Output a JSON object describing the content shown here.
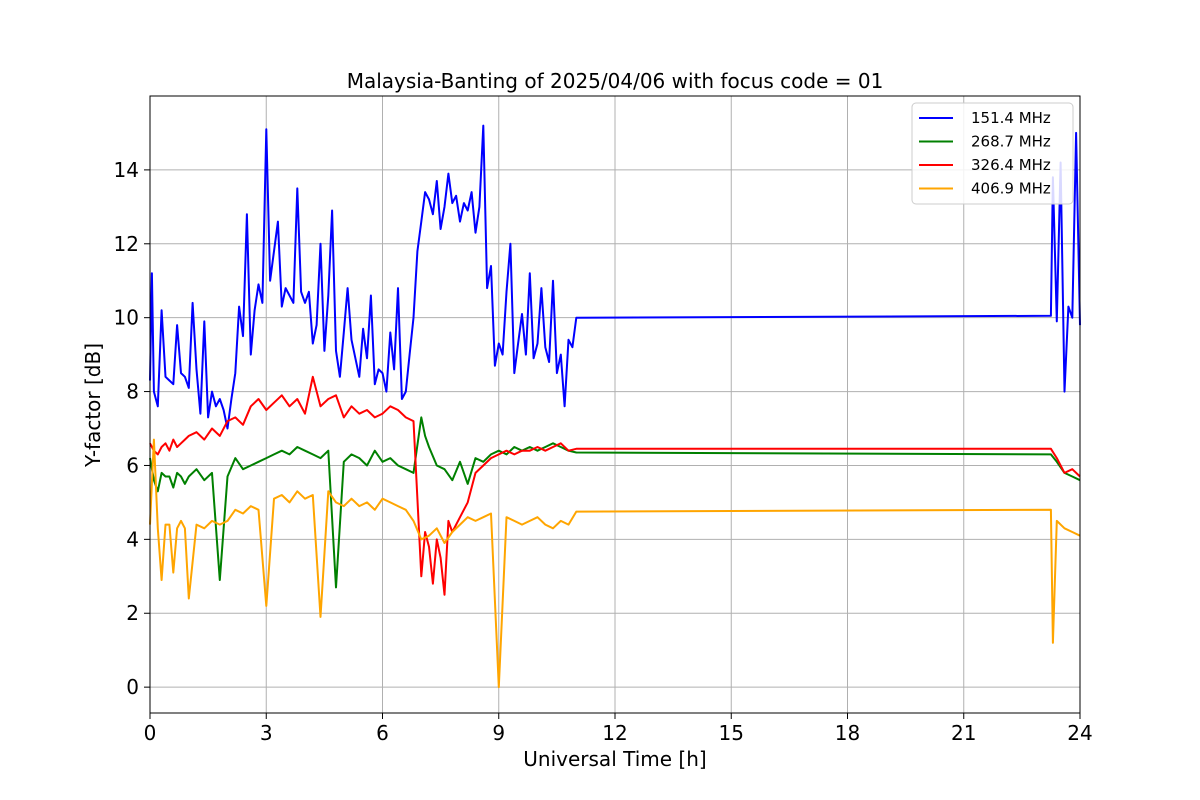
{
  "chart_data": {
    "type": "line",
    "title": "Malaysia-Banting of 2025/04/06 with focus code = 01",
    "xlabel": "Universal Time [h]",
    "ylabel": "Y-factor [dB]",
    "xlim": [
      0,
      24
    ],
    "ylim": [
      -0.7,
      16
    ],
    "xticks": [
      0,
      3,
      6,
      9,
      12,
      15,
      18,
      21,
      24
    ],
    "yticks": [
      0,
      2,
      4,
      6,
      8,
      10,
      12,
      14
    ],
    "grid": true,
    "legend_position": "top-right",
    "series": [
      {
        "name": "151.4 MHz",
        "color": "#0000ff",
        "x": [
          0.0,
          0.05,
          0.1,
          0.2,
          0.3,
          0.4,
          0.5,
          0.6,
          0.7,
          0.8,
          0.9,
          1.0,
          1.1,
          1.2,
          1.3,
          1.4,
          1.5,
          1.6,
          1.7,
          1.8,
          1.9,
          2.0,
          2.1,
          2.2,
          2.3,
          2.4,
          2.5,
          2.6,
          2.7,
          2.8,
          2.9,
          3.0,
          3.1,
          3.2,
          3.3,
          3.4,
          3.5,
          3.6,
          3.7,
          3.8,
          3.9,
          4.0,
          4.1,
          4.2,
          4.3,
          4.4,
          4.5,
          4.6,
          4.7,
          4.8,
          4.9,
          5.0,
          5.1,
          5.2,
          5.3,
          5.4,
          5.5,
          5.6,
          5.7,
          5.8,
          5.9,
          6.0,
          6.1,
          6.2,
          6.3,
          6.4,
          6.5,
          6.6,
          6.7,
          6.8,
          6.9,
          7.0,
          7.1,
          7.2,
          7.3,
          7.4,
          7.5,
          7.6,
          7.7,
          7.8,
          7.9,
          8.0,
          8.1,
          8.2,
          8.3,
          8.4,
          8.5,
          8.6,
          8.7,
          8.8,
          8.9,
          9.0,
          9.1,
          9.2,
          9.3,
          9.4,
          9.5,
          9.6,
          9.7,
          9.8,
          9.9,
          10.0,
          10.1,
          10.2,
          10.3,
          10.4,
          10.5,
          10.6,
          10.7,
          10.8,
          10.9,
          11.0,
          23.25,
          23.3,
          23.4,
          23.5,
          23.6,
          23.7,
          23.8,
          23.9,
          24.0
        ],
        "values": [
          8.3,
          11.2,
          8.0,
          7.6,
          10.2,
          8.4,
          8.3,
          8.2,
          9.8,
          8.5,
          8.4,
          8.1,
          10.4,
          8.6,
          7.4,
          9.9,
          7.3,
          8.0,
          7.6,
          7.8,
          7.5,
          7.0,
          7.8,
          8.5,
          10.3,
          9.5,
          12.8,
          9.0,
          10.2,
          10.9,
          10.4,
          15.1,
          11.0,
          11.8,
          12.6,
          10.3,
          10.8,
          10.6,
          10.4,
          13.5,
          10.7,
          10.4,
          10.7,
          9.3,
          9.8,
          12.0,
          9.1,
          10.6,
          12.9,
          9.1,
          8.4,
          9.6,
          10.8,
          9.4,
          8.9,
          8.4,
          9.7,
          8.9,
          10.6,
          8.2,
          8.6,
          8.5,
          8.0,
          9.6,
          8.6,
          10.8,
          7.8,
          8.0,
          9.0,
          10.0,
          11.8,
          12.6,
          13.4,
          13.2,
          12.8,
          13.7,
          12.4,
          13.0,
          13.9,
          13.1,
          13.3,
          12.6,
          13.1,
          12.9,
          13.4,
          12.3,
          13.0,
          15.2,
          10.8,
          11.4,
          8.7,
          9.3,
          9.0,
          10.7,
          12.0,
          8.5,
          9.3,
          10.1,
          9.0,
          11.2,
          8.9,
          9.3,
          10.8,
          9.2,
          8.8,
          11.0,
          8.5,
          9.0,
          7.6,
          9.4,
          9.2,
          10.0,
          10.05,
          13.8,
          9.9,
          14.2,
          8.0,
          10.3,
          10.0,
          15.0,
          9.8
        ]
      },
      {
        "name": "268.7 MHz",
        "color": "#008000",
        "x": [
          0.0,
          0.1,
          0.2,
          0.3,
          0.4,
          0.5,
          0.6,
          0.7,
          0.8,
          0.9,
          1.0,
          1.2,
          1.4,
          1.6,
          1.8,
          2.0,
          2.2,
          2.4,
          2.6,
          2.8,
          3.0,
          3.2,
          3.4,
          3.6,
          3.8,
          4.0,
          4.2,
          4.4,
          4.6,
          4.8,
          5.0,
          5.2,
          5.4,
          5.6,
          5.8,
          6.0,
          6.2,
          6.4,
          6.6,
          6.8,
          7.0,
          7.1,
          7.2,
          7.4,
          7.6,
          7.8,
          8.0,
          8.2,
          8.4,
          8.6,
          8.8,
          9.0,
          9.2,
          9.4,
          9.6,
          9.8,
          10.0,
          10.2,
          10.4,
          10.6,
          10.8,
          11.0,
          23.25,
          23.4,
          23.6,
          23.8,
          24.0
        ],
        "values": [
          6.2,
          5.6,
          5.3,
          5.8,
          5.7,
          5.7,
          5.4,
          5.8,
          5.7,
          5.5,
          5.7,
          5.9,
          5.6,
          5.8,
          2.9,
          5.7,
          6.2,
          5.9,
          6.0,
          6.1,
          6.2,
          6.3,
          6.4,
          6.3,
          6.5,
          6.4,
          6.3,
          6.2,
          6.4,
          2.7,
          6.1,
          6.3,
          6.2,
          6.0,
          6.4,
          6.1,
          6.2,
          6.0,
          5.9,
          5.8,
          7.3,
          6.8,
          6.5,
          6.0,
          5.9,
          5.6,
          6.1,
          5.5,
          6.2,
          6.1,
          6.3,
          6.4,
          6.3,
          6.5,
          6.4,
          6.5,
          6.4,
          6.5,
          6.6,
          6.5,
          6.4,
          6.35,
          6.3,
          6.1,
          5.8,
          5.7,
          5.6
        ]
      },
      {
        "name": "326.4 MHz",
        "color": "#ff0000",
        "x": [
          0.0,
          0.1,
          0.2,
          0.3,
          0.4,
          0.5,
          0.6,
          0.7,
          0.8,
          0.9,
          1.0,
          1.2,
          1.4,
          1.6,
          1.8,
          2.0,
          2.2,
          2.4,
          2.6,
          2.8,
          3.0,
          3.2,
          3.4,
          3.6,
          3.8,
          4.0,
          4.2,
          4.4,
          4.6,
          4.8,
          5.0,
          5.2,
          5.4,
          5.6,
          5.8,
          6.0,
          6.2,
          6.4,
          6.6,
          6.8,
          7.0,
          7.1,
          7.2,
          7.3,
          7.4,
          7.5,
          7.6,
          7.7,
          7.8,
          8.0,
          8.2,
          8.4,
          8.6,
          8.8,
          9.0,
          9.2,
          9.4,
          9.6,
          9.8,
          10.0,
          10.2,
          10.4,
          10.6,
          10.8,
          11.0,
          23.25,
          23.4,
          23.6,
          23.8,
          24.0
        ],
        "values": [
          6.6,
          6.4,
          6.3,
          6.5,
          6.6,
          6.4,
          6.7,
          6.5,
          6.6,
          6.7,
          6.8,
          6.9,
          6.7,
          7.0,
          6.8,
          7.2,
          7.3,
          7.1,
          7.6,
          7.8,
          7.5,
          7.7,
          7.9,
          7.6,
          7.8,
          7.4,
          8.4,
          7.6,
          7.8,
          7.9,
          7.3,
          7.6,
          7.4,
          7.5,
          7.3,
          7.4,
          7.6,
          7.5,
          7.3,
          7.2,
          3.0,
          4.2,
          3.8,
          2.8,
          4.0,
          3.5,
          2.5,
          4.5,
          4.2,
          4.6,
          5.0,
          5.8,
          6.0,
          6.2,
          6.3,
          6.4,
          6.3,
          6.4,
          6.4,
          6.5,
          6.4,
          6.5,
          6.6,
          6.4,
          6.45,
          6.45,
          6.2,
          5.8,
          5.9,
          5.7
        ]
      },
      {
        "name": "406.9 MHz",
        "color": "#ffa500",
        "x": [
          0.0,
          0.1,
          0.2,
          0.3,
          0.4,
          0.5,
          0.6,
          0.7,
          0.8,
          0.9,
          1.0,
          1.2,
          1.4,
          1.6,
          1.8,
          2.0,
          2.2,
          2.4,
          2.6,
          2.8,
          3.0,
          3.2,
          3.4,
          3.6,
          3.8,
          4.0,
          4.2,
          4.4,
          4.6,
          4.8,
          5.0,
          5.2,
          5.4,
          5.6,
          5.8,
          6.0,
          6.2,
          6.4,
          6.6,
          6.8,
          7.0,
          7.2,
          7.4,
          7.6,
          7.8,
          8.0,
          8.2,
          8.4,
          8.6,
          8.8,
          9.0,
          9.2,
          9.4,
          9.6,
          9.8,
          10.0,
          10.2,
          10.4,
          10.6,
          10.8,
          11.0,
          23.25,
          23.3,
          23.4,
          23.6,
          23.8,
          24.0
        ],
        "values": [
          4.4,
          6.7,
          4.3,
          2.9,
          4.4,
          4.4,
          3.1,
          4.3,
          4.5,
          4.3,
          2.4,
          4.4,
          4.3,
          4.5,
          4.4,
          4.5,
          4.8,
          4.7,
          4.9,
          4.8,
          2.2,
          5.1,
          5.2,
          5.0,
          5.3,
          5.1,
          5.2,
          1.9,
          5.3,
          5.0,
          4.9,
          5.1,
          4.9,
          5.0,
          4.8,
          5.1,
          5.0,
          4.9,
          4.8,
          4.5,
          4.0,
          4.1,
          4.3,
          3.9,
          4.2,
          4.4,
          4.6,
          4.5,
          4.6,
          4.7,
          0.0,
          4.6,
          4.5,
          4.4,
          4.5,
          4.6,
          4.4,
          4.3,
          4.5,
          4.4,
          4.75,
          4.8,
          1.2,
          4.5,
          4.3,
          4.2,
          4.1
        ]
      }
    ]
  }
}
